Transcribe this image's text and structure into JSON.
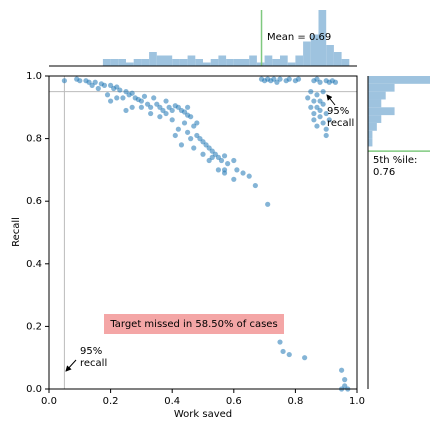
{
  "chart_data": {
    "type": "scatter",
    "xlabel": "Work saved",
    "ylabel": "Recall",
    "color": "#1f77b4",
    "xlim": [
      0,
      1
    ],
    "ylim": [
      0,
      1
    ],
    "xticks": [
      {
        "value": 0,
        "label": "0.0"
      },
      0.2,
      0.4,
      0.6,
      0.8,
      {
        "value": 1,
        "label": "1.0"
      }
    ],
    "yticks": [
      {
        "value": 0,
        "label": "0.0"
      },
      0.2,
      0.4,
      0.6,
      0.8,
      {
        "value": 1,
        "label": "1.0"
      }
    ],
    "x": [
      0.05,
      0.09,
      0.1,
      0.12,
      0.13,
      0.15,
      0.17,
      0.18,
      0.2,
      0.21,
      0.16,
      0.14,
      0.22,
      0.23,
      0.25,
      0.26,
      0.24,
      0.27,
      0.28,
      0.29,
      0.3,
      0.31,
      0.32,
      0.33,
      0.34,
      0.35,
      0.36,
      0.37,
      0.38,
      0.39,
      0.4,
      0.41,
      0.42,
      0.43,
      0.44,
      0.45,
      0.46,
      0.3,
      0.27,
      0.25,
      0.22,
      0.19,
      0.2,
      0.33,
      0.36,
      0.38,
      0.4,
      0.42,
      0.44,
      0.45,
      0.47,
      0.48,
      0.49,
      0.5,
      0.51,
      0.52,
      0.53,
      0.54,
      0.55,
      0.56,
      0.57,
      0.58,
      0.6,
      0.61,
      0.63,
      0.65,
      0.67,
      0.71,
      0.52,
      0.55,
      0.57,
      0.5,
      0.47,
      0.43,
      0.41,
      0.46,
      0.6,
      0.57,
      0.45,
      0.48,
      0.53,
      0.69,
      0.7,
      0.71,
      0.72,
      0.73,
      0.74,
      0.75,
      0.77,
      0.78,
      0.8,
      0.81,
      0.86,
      0.87,
      0.88,
      0.9,
      0.91,
      0.92,
      0.93,
      0.84,
      0.85,
      0.86,
      0.87,
      0.88,
      0.89,
      0.9,
      0.86,
      0.85,
      0.87,
      0.88,
      0.89,
      0.9,
      0.91,
      0.87,
      0.86,
      0.9,
      0.88,
      0.89,
      0.75,
      0.76,
      0.78,
      0.83,
      0.95,
      0.96,
      0.96,
      0.95,
      0.97
    ],
    "values": [
      0.985,
      0.99,
      0.985,
      0.985,
      0.98,
      0.98,
      0.975,
      0.97,
      0.97,
      0.96,
      0.96,
      0.97,
      0.965,
      0.955,
      0.95,
      0.94,
      0.93,
      0.945,
      0.93,
      0.925,
      0.92,
      0.935,
      0.91,
      0.9,
      0.93,
      0.91,
      0.9,
      0.89,
      0.92,
      0.9,
      0.89,
      0.905,
      0.9,
      0.89,
      0.885,
      0.875,
      0.87,
      0.9,
      0.9,
      0.89,
      0.93,
      0.94,
      0.92,
      0.88,
      0.87,
      0.88,
      0.86,
      0.83,
      0.85,
      0.82,
      0.84,
      0.81,
      0.8,
      0.79,
      0.78,
      0.77,
      0.76,
      0.75,
      0.74,
      0.73,
      0.745,
      0.72,
      0.73,
      0.7,
      0.69,
      0.68,
      0.65,
      0.59,
      0.73,
      0.7,
      0.7,
      0.75,
      0.77,
      0.78,
      0.81,
      0.8,
      0.67,
      0.69,
      0.9,
      0.85,
      0.74,
      0.99,
      0.985,
      0.99,
      0.985,
      0.99,
      0.98,
      0.99,
      0.985,
      0.99,
      0.985,
      0.99,
      0.985,
      0.99,
      0.98,
      0.985,
      0.98,
      0.985,
      0.98,
      0.93,
      0.95,
      0.92,
      0.9,
      0.89,
      0.91,
      0.88,
      0.88,
      0.9,
      0.94,
      0.87,
      0.85,
      0.83,
      0.86,
      0.84,
      0.86,
      0.81,
      0.92,
      0.95,
      0.15,
      0.12,
      0.11,
      0.1,
      0.06,
      0.03,
      0.01,
      0,
      0
    ],
    "hline": 0.95,
    "vline": 0.05,
    "annotations": [
      "95%\nrecall",
      "95%\nrecall",
      "Target missed in 58.50% of cases"
    ],
    "top_hist": {
      "color": "#9ec3df",
      "bins": [
        0.175,
        0.2,
        0.225,
        0.25,
        0.275,
        0.3,
        0.325,
        0.35,
        0.375,
        0.4,
        0.425,
        0.45,
        0.475,
        0.5,
        0.525,
        0.55,
        0.575,
        0.6,
        0.625,
        0.65,
        0.675,
        0.7,
        0.725,
        0.75,
        0.775,
        0.8,
        0.825,
        0.85,
        0.875,
        0.9,
        0.925,
        0.95,
        0.975
      ],
      "counts": [
        2,
        2,
        2,
        1,
        2,
        2,
        4,
        3,
        3,
        2,
        2,
        3,
        2,
        1,
        2,
        3,
        2,
        2,
        2,
        3,
        1,
        3,
        2,
        3,
        1,
        3,
        7,
        9,
        16,
        6,
        4,
        2
      ],
      "mean": 0.69,
      "mean_label": "Mean = 0.69"
    },
    "right_hist": {
      "color": "#9ec3df",
      "bins": [
        0.75,
        0.775,
        0.8,
        0.825,
        0.85,
        0.875,
        0.9,
        0.925,
        0.95,
        0.975,
        1.0
      ],
      "counts": [
        0,
        1,
        1,
        2,
        3,
        6,
        3,
        4,
        6,
        14
      ],
      "p5": 0.76,
      "p5_label": "5th %ile:\n0.76"
    }
  }
}
